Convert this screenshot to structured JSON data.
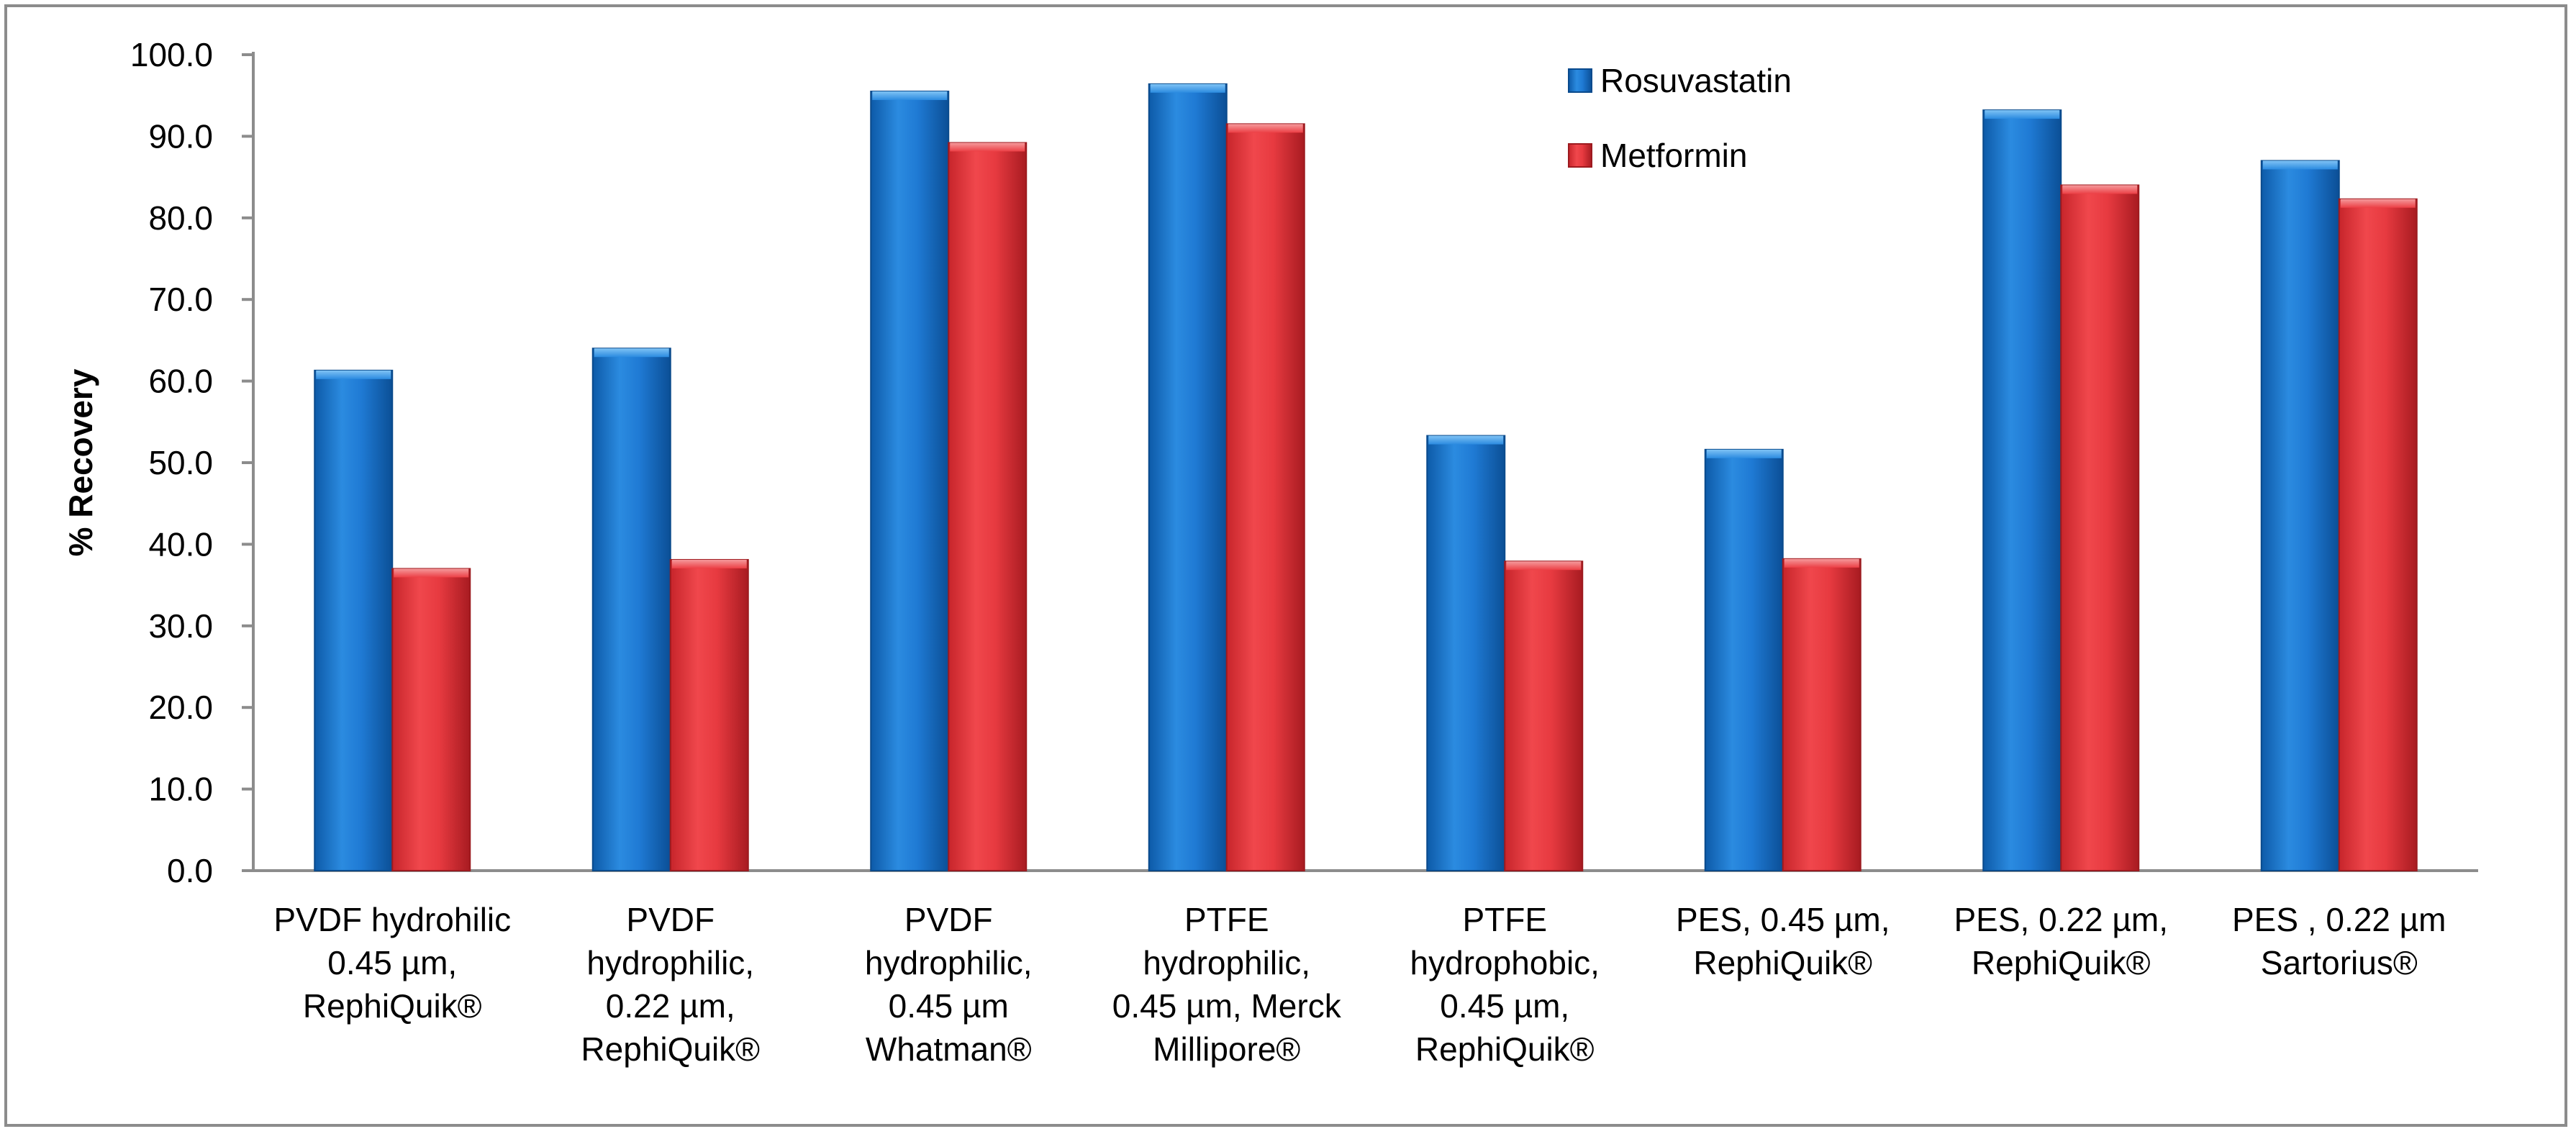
{
  "chart_data": {
    "type": "bar",
    "title": "",
    "xlabel": "",
    "ylabel": "% Recovery",
    "ylim": [
      0,
      100
    ],
    "ytick_step": 10,
    "ytick_labels": [
      "0.0",
      "10.0",
      "20.0",
      "30.0",
      "40.0",
      "50.0",
      "60.0",
      "70.0",
      "80.0",
      "90.0",
      "100.0"
    ],
    "grid": false,
    "legend_position": "top-right",
    "categories": [
      [
        "PVDF hydrohilic",
        "0.45 µm,",
        "RephiQuik®"
      ],
      [
        "PVDF",
        "hydrophilic,",
        "0.22 µm,",
        "RephiQuik®"
      ],
      [
        "PVDF",
        "hydrophilic,",
        "0.45 µm",
        "Whatman®"
      ],
      [
        "PTFE",
        "hydrophilic,",
        "0.45 µm, Merck",
        "Millipore®"
      ],
      [
        "PTFE",
        "hydrophobic,",
        "0.45 µm,",
        "RephiQuik®"
      ],
      [
        "PES, 0.45 µm,",
        "RephiQuik®"
      ],
      [
        "PES, 0.22 µm,",
        "RephiQuik®"
      ],
      [
        "PES , 0.22 µm",
        "Sartorius®"
      ]
    ],
    "series": [
      {
        "name": "Rosuvastatin",
        "color": "#1a75cc",
        "values": [
          61.3,
          64.0,
          95.5,
          96.4,
          53.3,
          51.6,
          93.2,
          87.0
        ]
      },
      {
        "name": "Metformin",
        "color": "#e8343a",
        "values": [
          37.0,
          38.1,
          89.2,
          91.5,
          37.9,
          38.2,
          84.0,
          82.3
        ]
      }
    ]
  }
}
